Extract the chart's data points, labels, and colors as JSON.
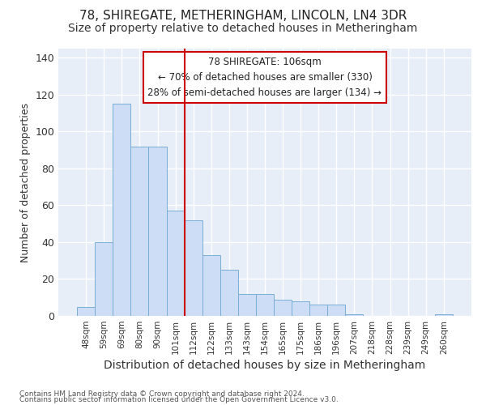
{
  "title": "78, SHIREGATE, METHERINGHAM, LINCOLN, LN4 3DR",
  "subtitle": "Size of property relative to detached houses in Metheringham",
  "xlabel": "Distribution of detached houses by size in Metheringham",
  "ylabel": "Number of detached properties",
  "categories": [
    "48sqm",
    "59sqm",
    "69sqm",
    "80sqm",
    "90sqm",
    "101sqm",
    "112sqm",
    "122sqm",
    "133sqm",
    "143sqm",
    "154sqm",
    "165sqm",
    "175sqm",
    "186sqm",
    "196sqm",
    "207sqm",
    "218sqm",
    "228sqm",
    "239sqm",
    "249sqm",
    "260sqm"
  ],
  "values": [
    5,
    40,
    115,
    92,
    92,
    57,
    52,
    33,
    25,
    12,
    12,
    9,
    8,
    6,
    6,
    1,
    0,
    0,
    0,
    0,
    1
  ],
  "bar_color": "#ccddf5",
  "bar_edge_color": "#7aaed6",
  "vline_x": 6.0,
  "vline_color": "#cc0000",
  "annotation_text": "78 SHIREGATE: 106sqm\n← 70% of detached houses are smaller (330)\n28% of semi-detached houses are larger (134) →",
  "annotation_box_color": "#ffffff",
  "annotation_box_edge": "#cc0000",
  "ylim": [
    0,
    145
  ],
  "yticks": [
    0,
    20,
    40,
    60,
    80,
    100,
    120,
    140
  ],
  "plot_bg": "#e8eef8",
  "fig_bg": "#ffffff",
  "grid_color": "#ffffff",
  "footer_line1": "Contains HM Land Registry data © Crown copyright and database right 2024.",
  "footer_line2": "Contains public sector information licensed under the Open Government Licence v3.0.",
  "title_fontsize": 11,
  "subtitle_fontsize": 10,
  "ylabel_fontsize": 9,
  "xlabel_fontsize": 10,
  "annot_fontsize": 8.5,
  "footer_fontsize": 6.5
}
